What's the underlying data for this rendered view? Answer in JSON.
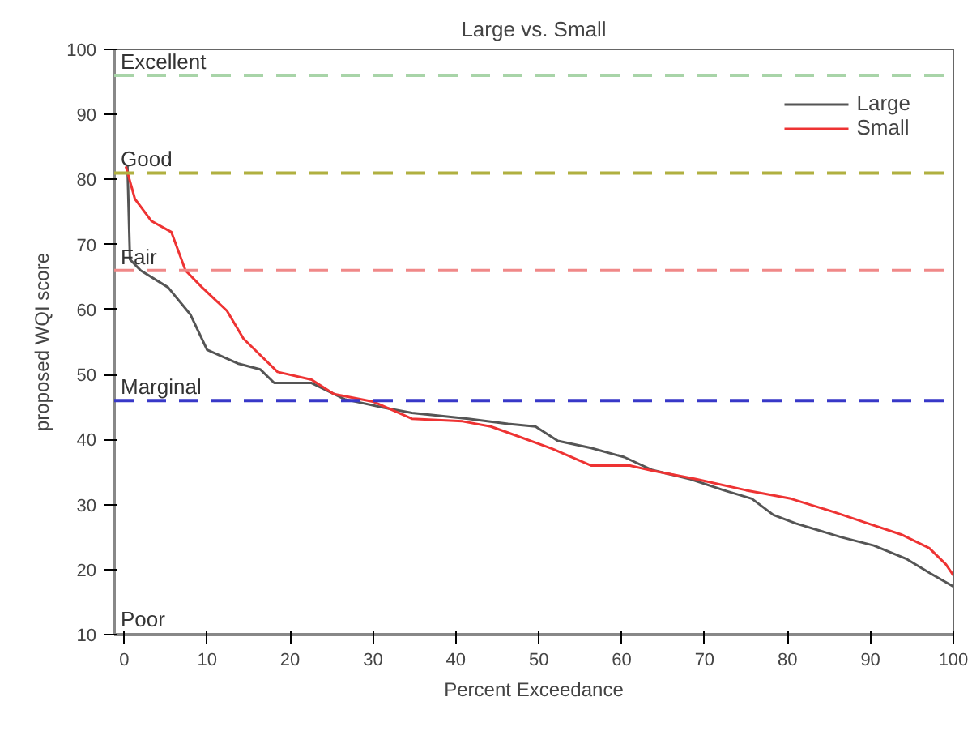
{
  "chart_data": {
    "type": "line",
    "title": "Large vs. Small",
    "xlabel": "Percent Exceedance",
    "ylabel": "proposed WQI score",
    "xlim": [
      -1.2,
      100
    ],
    "ylim": [
      10,
      100
    ],
    "xticks": [
      0,
      10,
      20,
      30,
      40,
      50,
      60,
      70,
      80,
      90,
      100
    ],
    "yticks": [
      10,
      20,
      30,
      40,
      50,
      60,
      70,
      80,
      90,
      100
    ],
    "grid": false,
    "legend": "top right",
    "line_style": "solid",
    "marker": "none",
    "series": [
      {
        "name": "Large",
        "color": "#555555",
        "x": [
          0.4,
          0.7,
          2,
          5.3,
          8,
          10,
          13.7,
          16.4,
          18.1,
          22.6,
          26.6,
          31.3,
          34.7,
          41.5,
          46.3,
          49.6,
          52.3,
          56.3,
          60.3,
          63.7,
          68.3,
          72.3,
          75.7,
          78.3,
          81,
          86.4,
          90.4,
          94.4,
          97.1,
          100
        ],
        "values": [
          82.1,
          67.7,
          66,
          63.4,
          59.2,
          53.8,
          51.7,
          50.8,
          48.7,
          48.7,
          46.2,
          44.9,
          44.1,
          43.2,
          42.4,
          42,
          39.8,
          38.7,
          37.3,
          35.3,
          33.9,
          32.2,
          30.9,
          28.4,
          27.1,
          25,
          23.7,
          21.6,
          19.5,
          17.4
        ]
      },
      {
        "name": "Small",
        "color": "#ee3333",
        "x": [
          0.2,
          1.3,
          3.3,
          5.7,
          7.4,
          9.4,
          12.4,
          14.4,
          16.4,
          18.5,
          22.6,
          25.3,
          30.1,
          34.7,
          40.8,
          44.2,
          46.2,
          51.6,
          56.3,
          61,
          63.7,
          69,
          75,
          80.4,
          85.7,
          89.7,
          93.7,
          97.1,
          99.1,
          100
        ],
        "values": [
          82,
          77,
          73.6,
          71.9,
          66,
          63.4,
          59.8,
          55.5,
          53,
          50.4,
          49.2,
          47,
          45.8,
          43.2,
          42.8,
          42,
          41.1,
          38.6,
          36,
          36,
          35.2,
          33.9,
          32.2,
          30.9,
          28.8,
          27.1,
          25.4,
          23.3,
          20.8,
          19.1
        ]
      }
    ],
    "ref_lines": [
      {
        "axis": "y",
        "value": 96,
        "label": "Excellent",
        "color": "#a8d4a8",
        "line_style": "dashed"
      },
      {
        "axis": "y",
        "value": 81,
        "label": "Good",
        "color": "#b0b040",
        "line_style": "dashed"
      },
      {
        "axis": "y",
        "value": 66,
        "label": "Fair",
        "color": "#f08888",
        "line_style": "dashed"
      },
      {
        "axis": "y",
        "value": 46,
        "label": "Marginal",
        "color": "#3838c8",
        "line_style": "dashed"
      }
    ],
    "annotations": [
      "Poor"
    ]
  }
}
